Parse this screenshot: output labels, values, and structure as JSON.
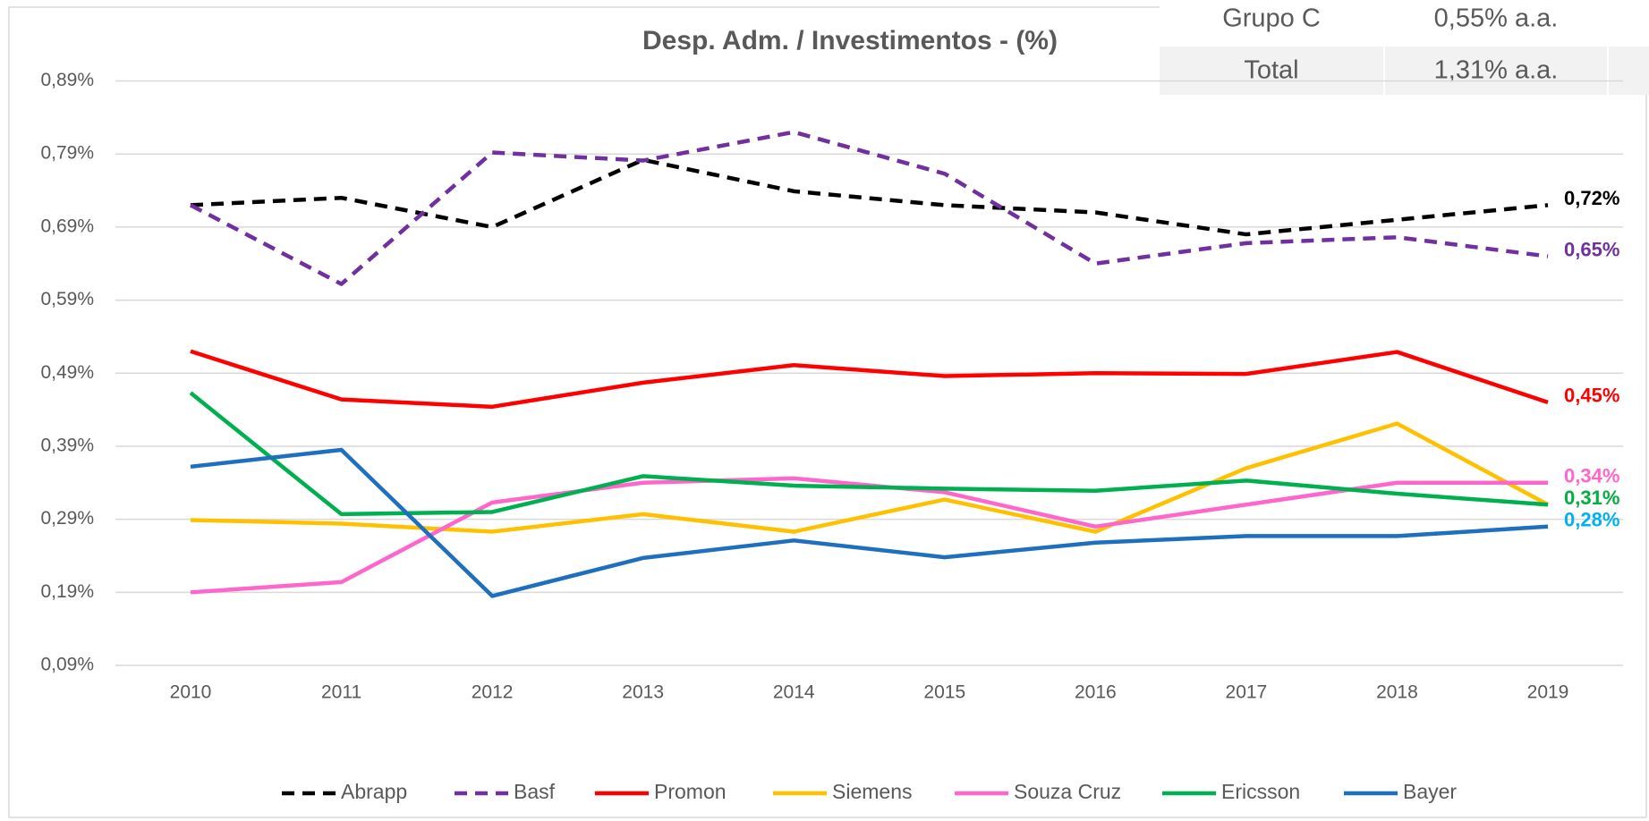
{
  "chart_data": {
    "type": "line",
    "title": "Desp. Adm. / Investimentos - (%)",
    "categories": [
      "2010",
      "2011",
      "2012",
      "2013",
      "2014",
      "2015",
      "2016",
      "2017",
      "2018",
      "2019"
    ],
    "ylim": [
      0.09,
      0.89
    ],
    "yticks": [
      {
        "value": 0.09,
        "label": "0,09%"
      },
      {
        "value": 0.19,
        "label": "0,19%"
      },
      {
        "value": 0.29,
        "label": "0,29%"
      },
      {
        "value": 0.39,
        "label": "0,39%"
      },
      {
        "value": 0.49,
        "label": "0,49%"
      },
      {
        "value": 0.59,
        "label": "0,59%"
      },
      {
        "value": 0.69,
        "label": "0,69%"
      },
      {
        "value": 0.79,
        "label": "0,79%"
      },
      {
        "value": 0.89,
        "label": "0,89%"
      }
    ],
    "grid": true,
    "legend": "bottom",
    "series": [
      {
        "name": "Abrapp",
        "color": "#000000",
        "dash": true,
        "values": [
          0.72,
          0.73,
          0.69,
          0.782,
          0.739,
          0.72,
          0.71,
          0.68,
          0.7,
          0.72
        ],
        "value_labels": [
          null,
          null,
          null,
          null,
          null,
          null,
          null,
          null,
          null,
          "0,72%"
        ]
      },
      {
        "name": "Basf",
        "color": "#7030a0",
        "dash": true,
        "values": [
          0.72,
          0.612,
          0.792,
          0.781,
          0.82,
          0.763,
          0.64,
          0.668,
          0.676,
          0.65
        ],
        "value_labels": [
          null,
          null,
          null,
          null,
          null,
          null,
          null,
          null,
          null,
          "0,65%"
        ]
      },
      {
        "name": "Promon",
        "color": "#ff0000",
        "values": [
          0.52,
          0.454,
          0.444,
          0.477,
          0.501,
          0.486,
          0.49,
          0.489,
          0.519,
          0.45
        ],
        "value_labels": [
          null,
          null,
          null,
          null,
          null,
          null,
          null,
          null,
          null,
          "0,45%"
        ]
      },
      {
        "name": "Siemens",
        "color": "#ffc000",
        "values": [
          0.289,
          0.284,
          0.273,
          0.297,
          0.273,
          0.317,
          0.273,
          0.36,
          0.421,
          0.31
        ],
        "value_labels": [
          null,
          null,
          null,
          null,
          null,
          null,
          null,
          null,
          null,
          "0,31%"
        ]
      },
      {
        "name": "Souza Cruz",
        "color": "#ff66cc",
        "values": [
          0.19,
          0.204,
          0.313,
          0.34,
          0.346,
          0.327,
          0.28,
          0.31,
          0.34,
          0.34
        ],
        "value_labels": [
          null,
          null,
          null,
          null,
          null,
          null,
          null,
          null,
          null,
          "0,34%"
        ]
      },
      {
        "name": "Ericsson",
        "color": "#00b050",
        "values": [
          0.463,
          0.297,
          0.3,
          0.349,
          0.336,
          0.332,
          0.329,
          0.343,
          0.325,
          0.31
        ],
        "value_labels": [
          null,
          null,
          null,
          null,
          null,
          null,
          null,
          null,
          null,
          "0,31%"
        ]
      },
      {
        "name": "Bayer",
        "color": "#1f6fbf",
        "label_color": "#00b0f0",
        "values": [
          0.362,
          0.385,
          0.185,
          0.237,
          0.261,
          0.238,
          0.258,
          0.267,
          0.267,
          0.28
        ],
        "value_labels": [
          null,
          null,
          null,
          null,
          null,
          null,
          null,
          null,
          null,
          "0,28%"
        ]
      }
    ]
  },
  "table": {
    "rows": [
      [
        "Grupo C",
        "0,55% a.a."
      ],
      [
        "Total",
        "1,31% a.a."
      ]
    ]
  }
}
